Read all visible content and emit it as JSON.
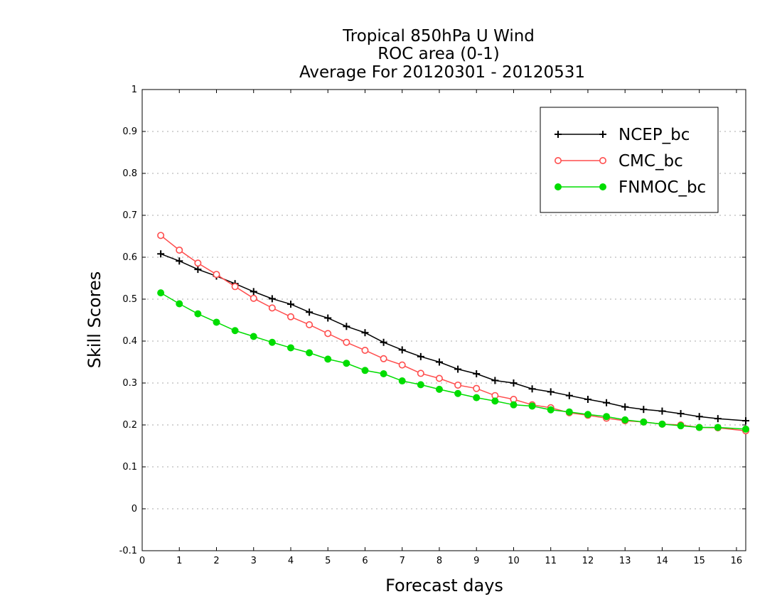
{
  "chart_data": {
    "type": "line",
    "title": [
      "Tropical 850hPa U Wind",
      "ROC area (0-1)",
      "Average For 20120301 - 20120531"
    ],
    "xlabel": "Forecast days",
    "ylabel": "Skill Scores",
    "xlim": [
      0,
      16.25
    ],
    "ylim": [
      -0.1,
      1
    ],
    "xticks": [
      0,
      1,
      2,
      3,
      4,
      5,
      6,
      7,
      8,
      9,
      10,
      11,
      12,
      13,
      14,
      15,
      16
    ],
    "yticks": [
      -0.1,
      0,
      0.1,
      0.2,
      0.3,
      0.4,
      0.5,
      0.6,
      0.7,
      0.8,
      0.9,
      1
    ],
    "ytick_labels": [
      "-0.1",
      "0",
      "0.1",
      "0.2",
      "0.3",
      "0.4",
      "0.5",
      "0.6",
      "0.7",
      "0.8",
      "0.9",
      "1"
    ],
    "grid": "horizontal dotted",
    "legend_position": "top-right",
    "x": [
      0.5,
      1,
      1.5,
      2,
      2.5,
      3,
      3.5,
      4,
      4.5,
      5,
      5.5,
      6,
      6.5,
      7,
      7.5,
      8,
      8.5,
      9,
      9.5,
      10,
      10.5,
      11,
      11.5,
      12,
      12.5,
      13,
      13.5,
      14,
      14.5,
      15,
      15.5,
      16.25
    ],
    "series": [
      {
        "name": "NCEP_bc",
        "color": "#000000",
        "marker": "plus",
        "values": [
          0.608,
          0.591,
          0.571,
          0.555,
          0.537,
          0.518,
          0.501,
          0.488,
          0.469,
          0.455,
          0.435,
          0.42,
          0.397,
          0.379,
          0.363,
          0.35,
          0.333,
          0.322,
          0.306,
          0.3,
          0.286,
          0.279,
          0.27,
          0.261,
          0.253,
          0.243,
          0.237,
          0.233,
          0.227,
          0.22,
          0.215,
          0.21
        ]
      },
      {
        "name": "CMC_bc",
        "color": "#ff4d4d",
        "marker": "open-circle",
        "values": [
          0.652,
          0.617,
          0.586,
          0.559,
          0.53,
          0.502,
          0.479,
          0.458,
          0.439,
          0.418,
          0.397,
          0.378,
          0.358,
          0.343,
          0.323,
          0.311,
          0.295,
          0.287,
          0.27,
          0.261,
          0.248,
          0.241,
          0.229,
          0.223,
          0.216,
          0.21,
          0.207,
          0.202,
          0.2,
          0.194,
          0.193,
          0.186
        ]
      },
      {
        "name": "FNMOC_bc",
        "color": "#00dd00",
        "marker": "filled-circle",
        "values": [
          0.515,
          0.489,
          0.465,
          0.445,
          0.425,
          0.411,
          0.397,
          0.384,
          0.372,
          0.357,
          0.347,
          0.33,
          0.322,
          0.305,
          0.296,
          0.285,
          0.275,
          0.265,
          0.257,
          0.248,
          0.245,
          0.236,
          0.231,
          0.225,
          0.22,
          0.212,
          0.207,
          0.202,
          0.198,
          0.194,
          0.194,
          0.19
        ]
      }
    ]
  }
}
